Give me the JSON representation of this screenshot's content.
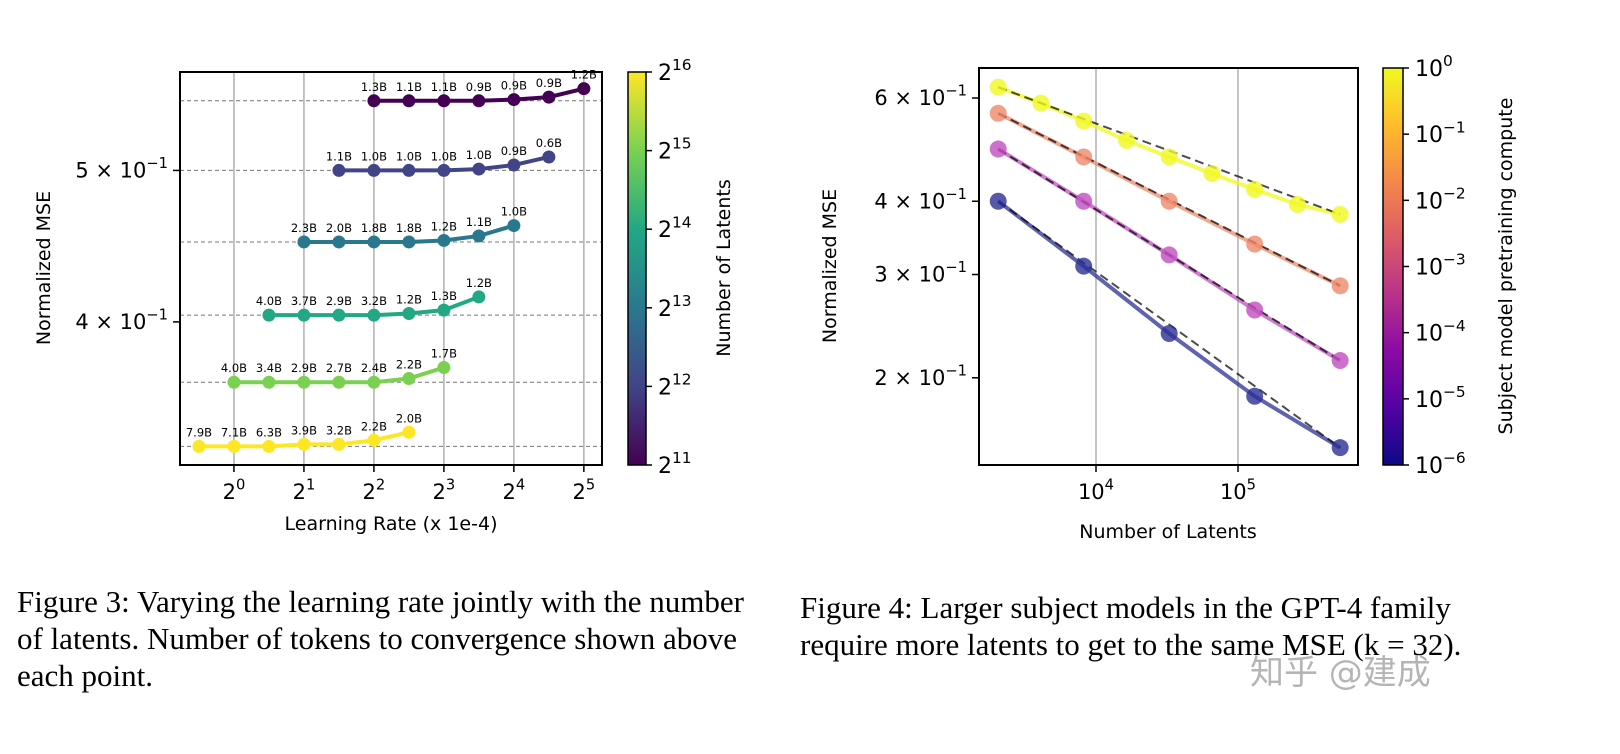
{
  "chart_data": [
    {
      "type": "line",
      "xlabel": "Learning Rate (x 1e-4)",
      "ylabel": "Normalized MSE",
      "xscale": "log2",
      "yscale": "log",
      "xlim": [
        0.586,
        38.3
      ],
      "ylim": [
        0.324,
        0.578
      ],
      "grid": "vertical",
      "xticks": [
        {
          "v": 1,
          "base": "2",
          "exp": "0"
        },
        {
          "v": 2,
          "base": "2",
          "exp": "1"
        },
        {
          "v": 4,
          "base": "2",
          "exp": "2"
        },
        {
          "v": 8,
          "base": "2",
          "exp": "3"
        },
        {
          "v": 16,
          "base": "2",
          "exp": "4"
        },
        {
          "v": 32,
          "base": "2",
          "exp": "5"
        }
      ],
      "yticks": [
        {
          "v": 0.4,
          "base": "4 × 10",
          "exp": "−1"
        },
        {
          "v": 0.5,
          "base": "5 × 10",
          "exp": "−1"
        }
      ],
      "colorbar": {
        "label": "Number of Latents",
        "scale": "log2",
        "colormap": "viridis",
        "ticks": [
          {
            "base": "2",
            "exp": "11"
          },
          {
            "base": "2",
            "exp": "12"
          },
          {
            "base": "2",
            "exp": "13"
          },
          {
            "base": "2",
            "exp": "14"
          },
          {
            "base": "2",
            "exp": "15"
          },
          {
            "base": "2",
            "exp": "16"
          }
        ],
        "stops": [
          "#440154",
          "#414487",
          "#2a788e",
          "#22a884",
          "#7ad151",
          "#fde725"
        ]
      },
      "series": [
        {
          "color": "#fde725",
          "x": [
            0.707,
            1,
            1.414,
            2,
            2.828,
            4,
            5.657
          ],
          "y": [
            0.333,
            0.333,
            0.333,
            0.334,
            0.334,
            0.336,
            0.34
          ],
          "labels": [
            "7.9B",
            "7.1B",
            "6.3B",
            "3.9B",
            "3.2B",
            "2.2B",
            "2.0B"
          ]
        },
        {
          "color": "#7ad151",
          "x": [
            1,
            1.414,
            2,
            2.828,
            4,
            5.657,
            8
          ],
          "y": [
            0.366,
            0.366,
            0.366,
            0.366,
            0.366,
            0.368,
            0.374
          ],
          "labels": [
            "4.0B",
            "3.4B",
            "2.9B",
            "2.7B",
            "2.4B",
            "2.2B",
            "1.7B"
          ]
        },
        {
          "color": "#22a884",
          "x": [
            1.414,
            2,
            2.828,
            4,
            5.657,
            8,
            11.31
          ],
          "y": [
            0.404,
            0.404,
            0.404,
            0.404,
            0.405,
            0.407,
            0.415
          ],
          "labels": [
            "4.0B",
            "3.7B",
            "2.9B",
            "3.2B",
            "1.2B",
            "1.3B",
            "1.2B"
          ]
        },
        {
          "color": "#2a788e",
          "x": [
            2,
            2.828,
            4,
            5.657,
            8,
            11.31,
            16
          ],
          "y": [
            0.45,
            0.45,
            0.45,
            0.45,
            0.451,
            0.454,
            0.461
          ],
          "labels": [
            "2.3B",
            "2.0B",
            "1.8B",
            "1.8B",
            "1.2B",
            "1.1B",
            "1.0B"
          ]
        },
        {
          "color": "#414487",
          "x": [
            2.828,
            4,
            5.657,
            8,
            11.31,
            16,
            22.63
          ],
          "y": [
            0.5,
            0.5,
            0.5,
            0.5,
            0.501,
            0.504,
            0.51
          ],
          "labels": [
            "1.1B",
            "1.0B",
            "1.0B",
            "1.0B",
            "1.0B",
            "0.9B",
            "0.6B"
          ]
        },
        {
          "color": "#440154",
          "x": [
            4,
            5.657,
            8,
            11.31,
            16,
            22.63,
            32
          ],
          "y": [
            0.554,
            0.554,
            0.554,
            0.554,
            0.555,
            0.557,
            0.564
          ],
          "labels": [
            "1.3B",
            "1.1B",
            "1.1B",
            "0.9B",
            "0.9B",
            "0.9B",
            "1.2B"
          ]
        }
      ]
    },
    {
      "type": "line",
      "xlabel": "Number of Latents",
      "ylabel": "Normalized MSE",
      "xscale": "log",
      "yscale": "log",
      "xlim": [
        1500,
        700000
      ],
      "ylim": [
        0.142,
        0.675
      ],
      "grid": "vertical",
      "xticks": [
        {
          "v": 10000,
          "base": "10",
          "exp": "4"
        },
        {
          "v": 100000,
          "base": "10",
          "exp": "5"
        }
      ],
      "yticks": [
        {
          "v": 0.2,
          "base": "2 × 10",
          "exp": "−1"
        },
        {
          "v": 0.3,
          "base": "3 × 10",
          "exp": "−1"
        },
        {
          "v": 0.4,
          "base": "4 × 10",
          "exp": "−1"
        },
        {
          "v": 0.6,
          "base": "6 × 10",
          "exp": "−1"
        }
      ],
      "colorbar": {
        "label": "Subject model pretraining compute",
        "scale": "log",
        "colormap": "plasma",
        "ticks": [
          {
            "base": "10",
            "exp": "−6"
          },
          {
            "base": "10",
            "exp": "−5"
          },
          {
            "base": "10",
            "exp": "−4"
          },
          {
            "base": "10",
            "exp": "−3"
          },
          {
            "base": "10",
            "exp": "−2"
          },
          {
            "base": "10",
            "exp": "−1"
          },
          {
            "base": "10",
            "exp": "0"
          }
        ],
        "stops": [
          "#0d0887",
          "#5302a3",
          "#8b0aa5",
          "#b83289",
          "#db5c68",
          "#f48849",
          "#febd2a",
          "#f0f921"
        ]
      },
      "series": [
        {
          "color": "#f0f921",
          "x": [
            2048,
            4096,
            8192,
            16384,
            32768,
            65536,
            131072,
            262144,
            524288
          ],
          "y": [
            0.626,
            0.588,
            0.548,
            0.508,
            0.476,
            0.446,
            0.419,
            0.395,
            0.38
          ]
        },
        {
          "color": "#ef8a6c",
          "x": [
            2048,
            8192,
            32768,
            131072,
            524288
          ],
          "y": [
            0.565,
            0.476,
            0.4,
            0.338,
            0.287
          ]
        },
        {
          "color": "#c04fbf",
          "x": [
            2048,
            8192,
            32768,
            131072,
            524288
          ],
          "y": [
            0.491,
            0.4,
            0.324,
            0.261,
            0.214
          ]
        },
        {
          "color": "#2c2f95",
          "x": [
            2048,
            8192,
            32768,
            131072,
            524288
          ],
          "y": [
            0.4,
            0.31,
            0.238,
            0.186,
            0.152
          ]
        }
      ]
    }
  ],
  "captions": {
    "fig3": "Figure 3: Varying the learning rate jointly with the number of latents. Number of tokens to convergence shown above each point.",
    "fig4": "Figure 4: Larger subject models in the GPT-4 family require more latents to get to the same MSE (k = 32)."
  },
  "watermark": "知乎 @建成"
}
